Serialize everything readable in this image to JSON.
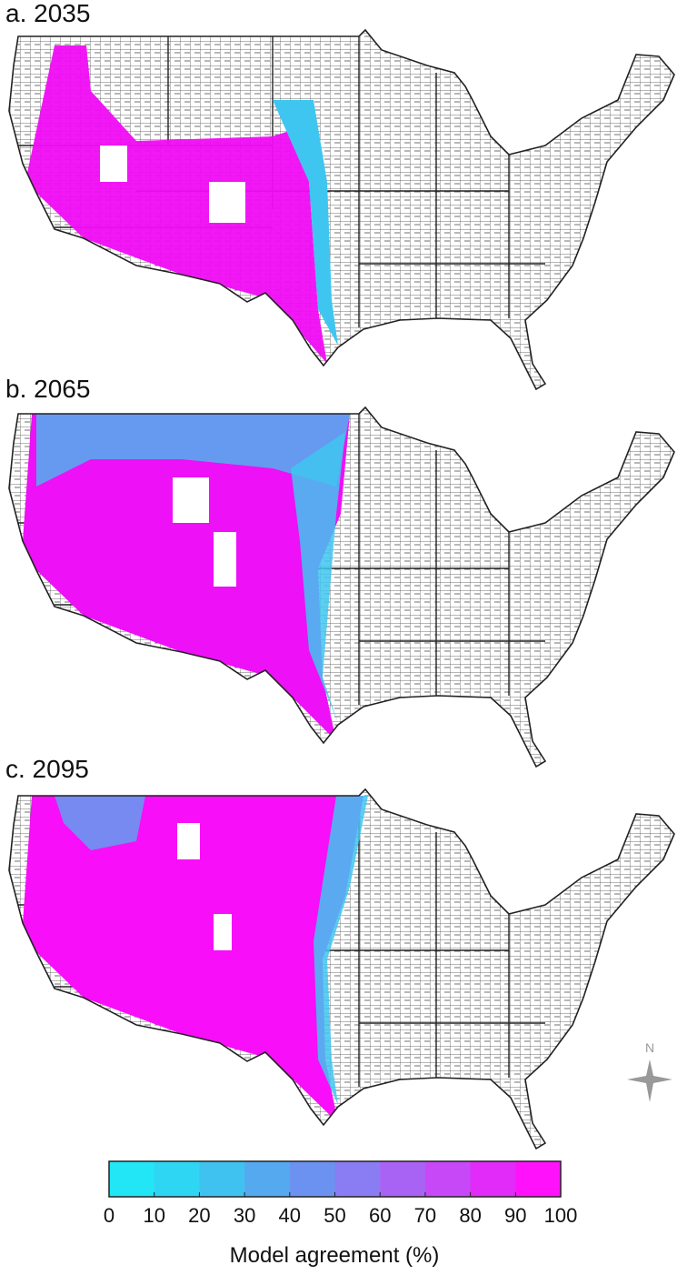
{
  "panels": [
    {
      "title": "a. 2035"
    },
    {
      "title": "b. 2065"
    },
    {
      "title": "c. 2095"
    }
  ],
  "colorbar": {
    "label": "Model agreement (%)",
    "lim": [
      0,
      100
    ],
    "ticks": [
      0,
      10,
      20,
      30,
      40,
      50,
      60,
      70,
      80,
      90,
      100
    ],
    "colors": [
      "#22e6f6",
      "#2fd6f4",
      "#40c2f1",
      "#55a9ef",
      "#6b92f0",
      "#8a7cf2",
      "#a963f4",
      "#c648f6",
      "#e22bf8",
      "#ff12fb"
    ]
  },
  "compass": "N"
}
